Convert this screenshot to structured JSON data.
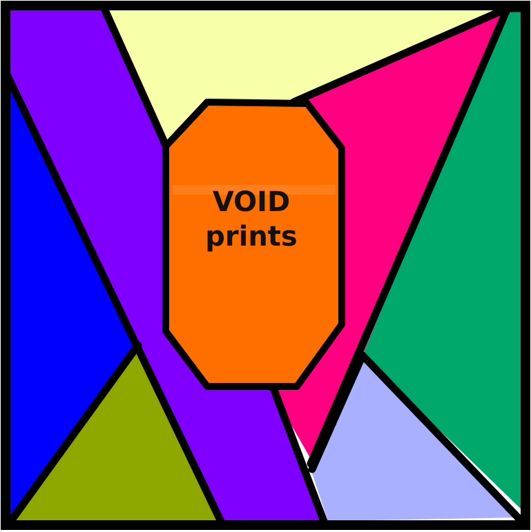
{
  "label": {
    "line1": "VOID",
    "line2": "prints"
  },
  "colors": {
    "outline": "#000000",
    "purple": "#7f00ff",
    "pale_yellow": "#f7ffa8",
    "magenta": "#ff0080",
    "green": "#00a86b",
    "blue": "#0000ff",
    "olive": "#8fa800",
    "lavender": "#a8b0ff",
    "orange": "#ff6f00"
  }
}
